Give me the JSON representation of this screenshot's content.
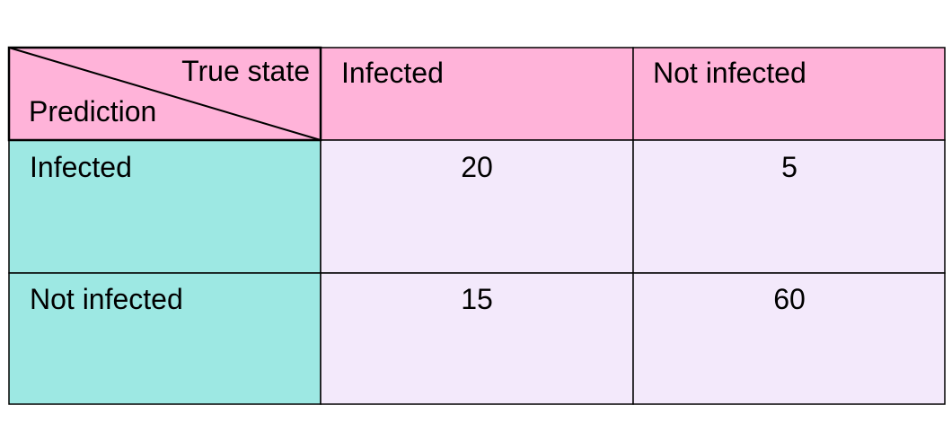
{
  "corner": {
    "top": "True state",
    "bottom": "Prediction"
  },
  "columns": [
    "Infected",
    "Not infected"
  ],
  "rows": [
    {
      "label": "Infected",
      "values": [
        "20",
        "5"
      ]
    },
    {
      "label": "Not infected",
      "values": [
        "15",
        "60"
      ]
    }
  ]
}
